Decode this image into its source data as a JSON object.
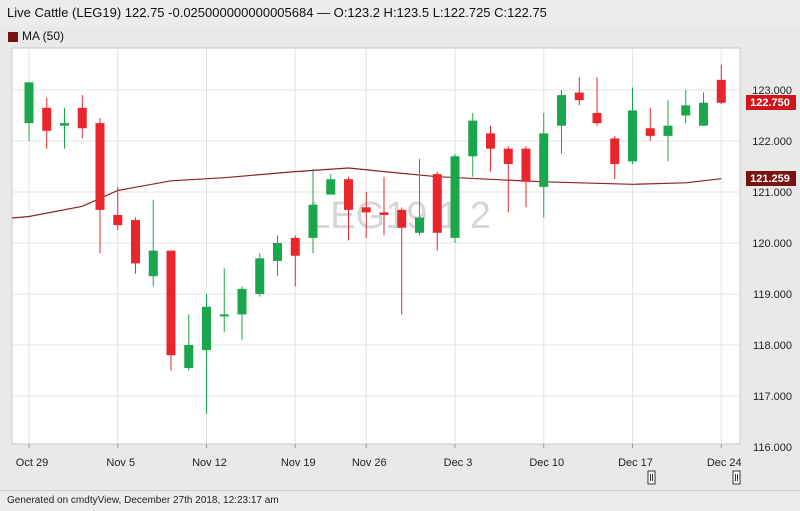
{
  "header": {
    "title": "Live Cattle (LEG19) 122.75 -0.025000000000005684 — O:123.2 H:123.5 L:122.725 C:122.75"
  },
  "legend": {
    "label": "MA (50)",
    "color": "#7a1212"
  },
  "footer": {
    "text": "Generated on cmdtyView, December 27th 2018, 12:23:17 am"
  },
  "watermark": "LEG19 1 2",
  "chart_data": {
    "type": "candlestick",
    "ylim": [
      116,
      124
    ],
    "yticks": [
      "116.000",
      "117.000",
      "118.000",
      "119.000",
      "120.000",
      "121.000",
      "122.000",
      "123.000"
    ],
    "xtick_labels": [
      "Oct 29",
      "Nov 5",
      "Nov 12",
      "Nov 19",
      "Nov 26",
      "Dec 3",
      "Dec 10",
      "Dec 17",
      "Dec 24"
    ],
    "last_price_label": "122.750",
    "ma_label": "121.259",
    "colors": {
      "up": "#1aa64a",
      "down": "#e8262b",
      "ma": "#8b2323"
    },
    "candles": [
      {
        "date": "Oct 29",
        "o": 122.35,
        "h": 123.15,
        "l": 122.0,
        "c": 123.15
      },
      {
        "date": "Oct 30",
        "o": 122.65,
        "h": 122.85,
        "l": 121.85,
        "c": 122.2
      },
      {
        "date": "Oct 31",
        "o": 122.3,
        "h": 122.65,
        "l": 121.85,
        "c": 122.35
      },
      {
        "date": "Nov 1",
        "o": 122.65,
        "h": 122.9,
        "l": 122.05,
        "c": 122.25
      },
      {
        "date": "Nov 2",
        "o": 122.35,
        "h": 122.45,
        "l": 119.8,
        "c": 120.65
      },
      {
        "date": "Nov 5",
        "o": 120.55,
        "h": 121.1,
        "l": 120.25,
        "c": 120.35
      },
      {
        "date": "Nov 6",
        "o": 120.45,
        "h": 120.5,
        "l": 119.4,
        "c": 119.6
      },
      {
        "date": "Nov 7",
        "o": 119.35,
        "h": 120.85,
        "l": 119.15,
        "c": 119.85
      },
      {
        "date": "Nov 8",
        "o": 119.85,
        "h": 119.85,
        "l": 117.5,
        "c": 117.8
      },
      {
        "date": "Nov 9",
        "o": 117.55,
        "h": 118.6,
        "l": 117.5,
        "c": 118.0
      },
      {
        "date": "Nov 12",
        "o": 117.9,
        "h": 119.0,
        "l": 116.65,
        "c": 118.75
      },
      {
        "date": "Nov 13",
        "o": 118.6,
        "h": 119.5,
        "l": 118.25,
        "c": 118.6
      },
      {
        "date": "Nov 14",
        "o": 118.6,
        "h": 119.15,
        "l": 118.1,
        "c": 119.1
      },
      {
        "date": "Nov 15",
        "o": 119.0,
        "h": 119.8,
        "l": 118.95,
        "c": 119.7
      },
      {
        "date": "Nov 16",
        "o": 119.65,
        "h": 120.15,
        "l": 119.35,
        "c": 120.0
      },
      {
        "date": "Nov 19",
        "o": 120.1,
        "h": 120.15,
        "l": 119.15,
        "c": 119.75
      },
      {
        "date": "Nov 20",
        "o": 120.1,
        "h": 121.45,
        "l": 119.8,
        "c": 120.75
      },
      {
        "date": "Nov 21",
        "o": 120.95,
        "h": 121.35,
        "l": 120.95,
        "c": 121.25
      },
      {
        "date": "Nov 23",
        "o": 121.25,
        "h": 121.3,
        "l": 120.05,
        "c": 120.65
      },
      {
        "date": "Nov 26",
        "o": 120.7,
        "h": 121.0,
        "l": 120.1,
        "c": 120.6
      },
      {
        "date": "Nov 27",
        "o": 120.6,
        "h": 121.3,
        "l": 120.15,
        "c": 120.55
      },
      {
        "date": "Nov 28",
        "o": 120.65,
        "h": 120.7,
        "l": 118.6,
        "c": 120.3
      },
      {
        "date": "Nov 29",
        "o": 120.2,
        "h": 121.65,
        "l": 120.15,
        "c": 120.5
      },
      {
        "date": "Nov 30",
        "o": 121.35,
        "h": 121.4,
        "l": 119.85,
        "c": 120.2
      },
      {
        "date": "Dec 3",
        "o": 120.1,
        "h": 121.75,
        "l": 120.0,
        "c": 121.7
      },
      {
        "date": "Dec 4",
        "o": 121.7,
        "h": 122.55,
        "l": 121.3,
        "c": 122.4
      },
      {
        "date": "Dec 5",
        "o": 122.15,
        "h": 122.3,
        "l": 121.4,
        "c": 121.85
      },
      {
        "date": "Dec 6",
        "o": 121.85,
        "h": 121.9,
        "l": 120.6,
        "c": 121.55
      },
      {
        "date": "Dec 7",
        "o": 121.85,
        "h": 121.9,
        "l": 120.7,
        "c": 121.2
      },
      {
        "date": "Dec 10",
        "o": 121.1,
        "h": 122.55,
        "l": 120.5,
        "c": 122.15
      },
      {
        "date": "Dec 11",
        "o": 122.3,
        "h": 123.0,
        "l": 121.75,
        "c": 122.9
      },
      {
        "date": "Dec 12",
        "o": 122.95,
        "h": 123.25,
        "l": 122.7,
        "c": 122.8
      },
      {
        "date": "Dec 13",
        "o": 122.55,
        "h": 123.25,
        "l": 122.3,
        "c": 122.35
      },
      {
        "date": "Dec 14",
        "o": 122.05,
        "h": 122.1,
        "l": 121.25,
        "c": 121.55
      },
      {
        "date": "Dec 17",
        "o": 121.6,
        "h": 123.05,
        "l": 121.55,
        "c": 122.6
      },
      {
        "date": "Dec 18",
        "o": 122.25,
        "h": 122.65,
        "l": 122.0,
        "c": 122.1
      },
      {
        "date": "Dec 19",
        "o": 122.1,
        "h": 122.8,
        "l": 121.6,
        "c": 122.3
      },
      {
        "date": "Dec 20",
        "o": 122.5,
        "h": 123.0,
        "l": 122.35,
        "c": 122.7
      },
      {
        "date": "Dec 21",
        "o": 122.3,
        "h": 122.95,
        "l": 122.3,
        "c": 122.75
      },
      {
        "date": "Dec 24",
        "o": 123.2,
        "h": 123.5,
        "l": 122.725,
        "c": 122.75
      }
    ],
    "ma": [
      {
        "date": "Oct 29",
        "v": 120.52
      },
      {
        "date": "Nov 1",
        "v": 120.72
      },
      {
        "date": "Nov 5",
        "v": 121.03
      },
      {
        "date": "Nov 8",
        "v": 121.22
      },
      {
        "date": "Nov 13",
        "v": 121.28
      },
      {
        "date": "Nov 19",
        "v": 121.4
      },
      {
        "date": "Nov 23",
        "v": 121.47
      },
      {
        "date": "Nov 27",
        "v": 121.4
      },
      {
        "date": "Nov 30",
        "v": 121.3
      },
      {
        "date": "Dec 5",
        "v": 121.25
      },
      {
        "date": "Dec 10",
        "v": 121.2
      },
      {
        "date": "Dec 17",
        "v": 121.15
      },
      {
        "date": "Dec 20",
        "v": 121.18
      },
      {
        "date": "Dec 24",
        "v": 121.26
      }
    ]
  }
}
